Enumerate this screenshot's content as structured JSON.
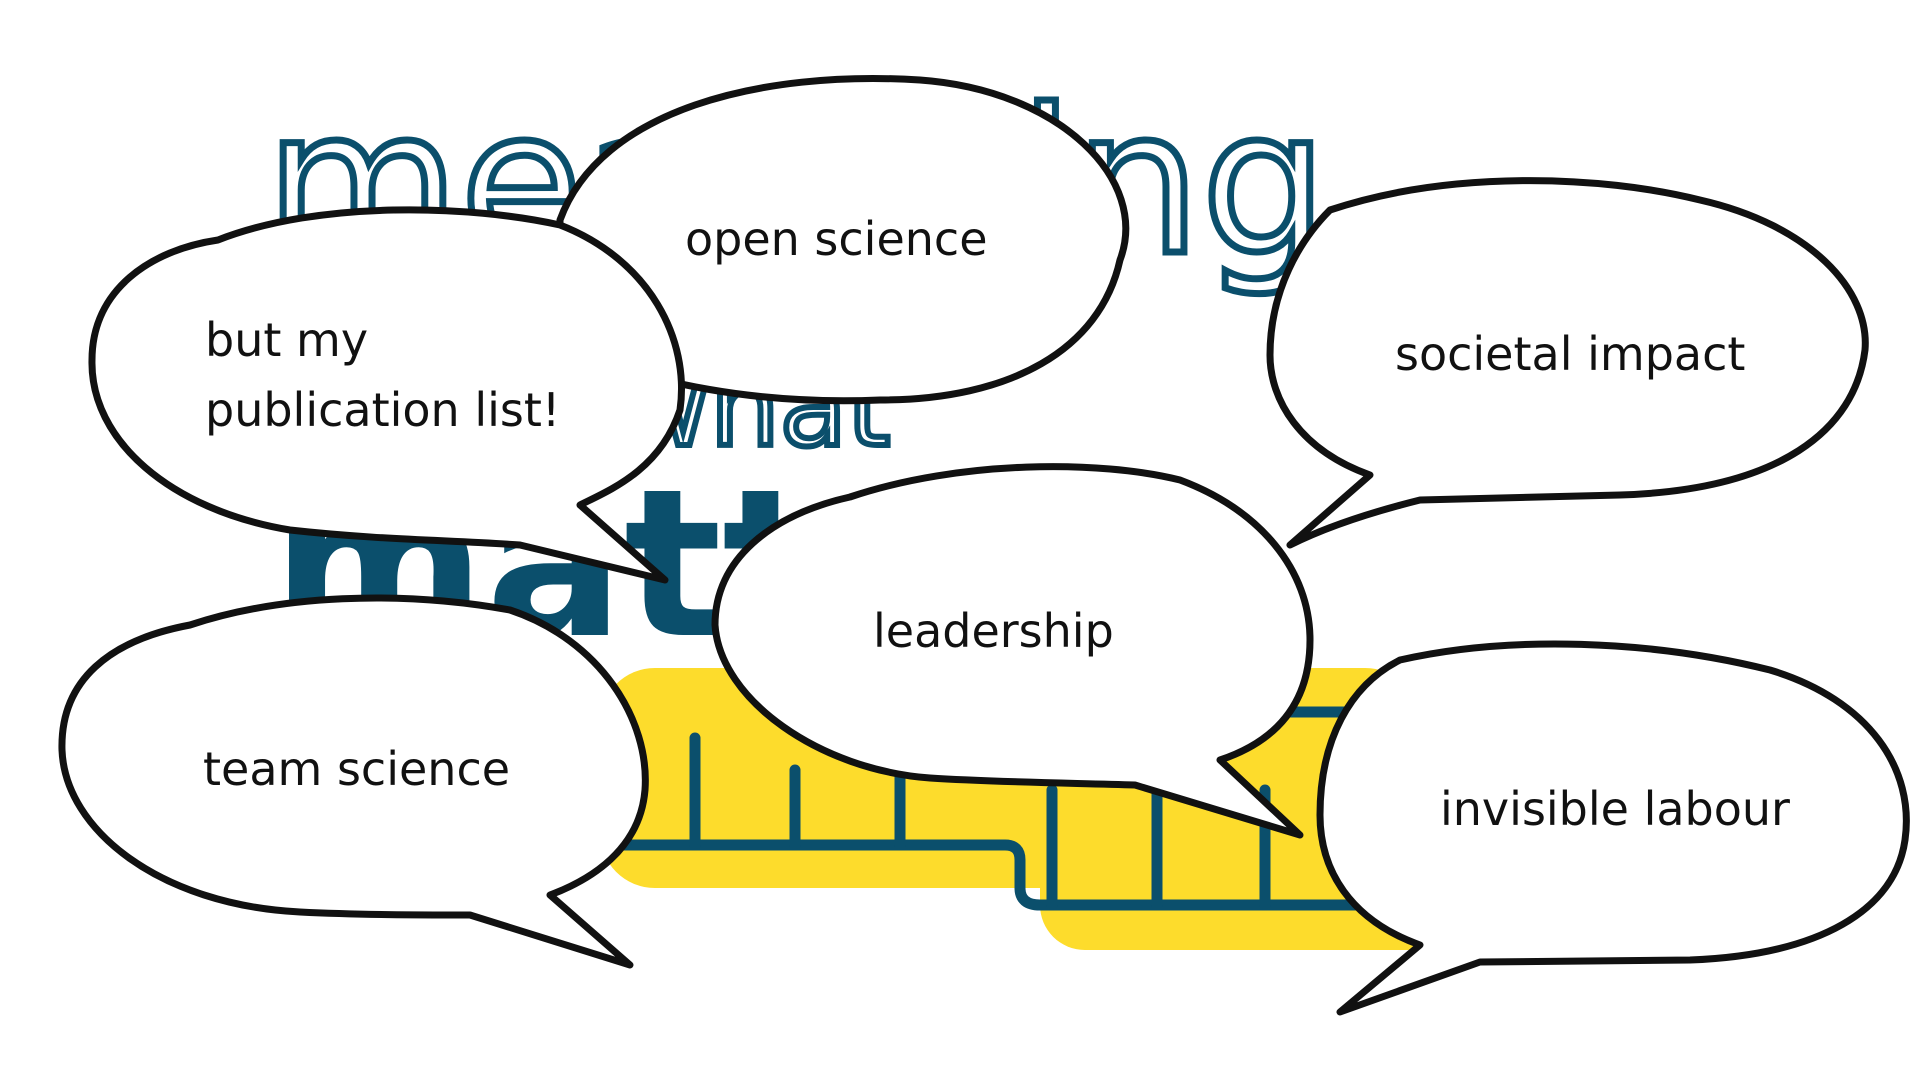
{
  "logo": {
    "text_line1": "measuring",
    "text_line2": "what",
    "text_line3": "matters",
    "colors": {
      "navy": "#0b4f6c",
      "yellow": "#fddc2c"
    }
  },
  "bubbles": [
    {
      "id": "open-science",
      "text": "open science"
    },
    {
      "id": "publication-list",
      "lines": [
        "but my",
        "publication list!"
      ]
    },
    {
      "id": "societal-impact",
      "text": "societal impact"
    },
    {
      "id": "leadership",
      "text": "leadership"
    },
    {
      "id": "team-science",
      "text": "team science"
    },
    {
      "id": "invisible-labour",
      "text": "invisible labour"
    }
  ]
}
